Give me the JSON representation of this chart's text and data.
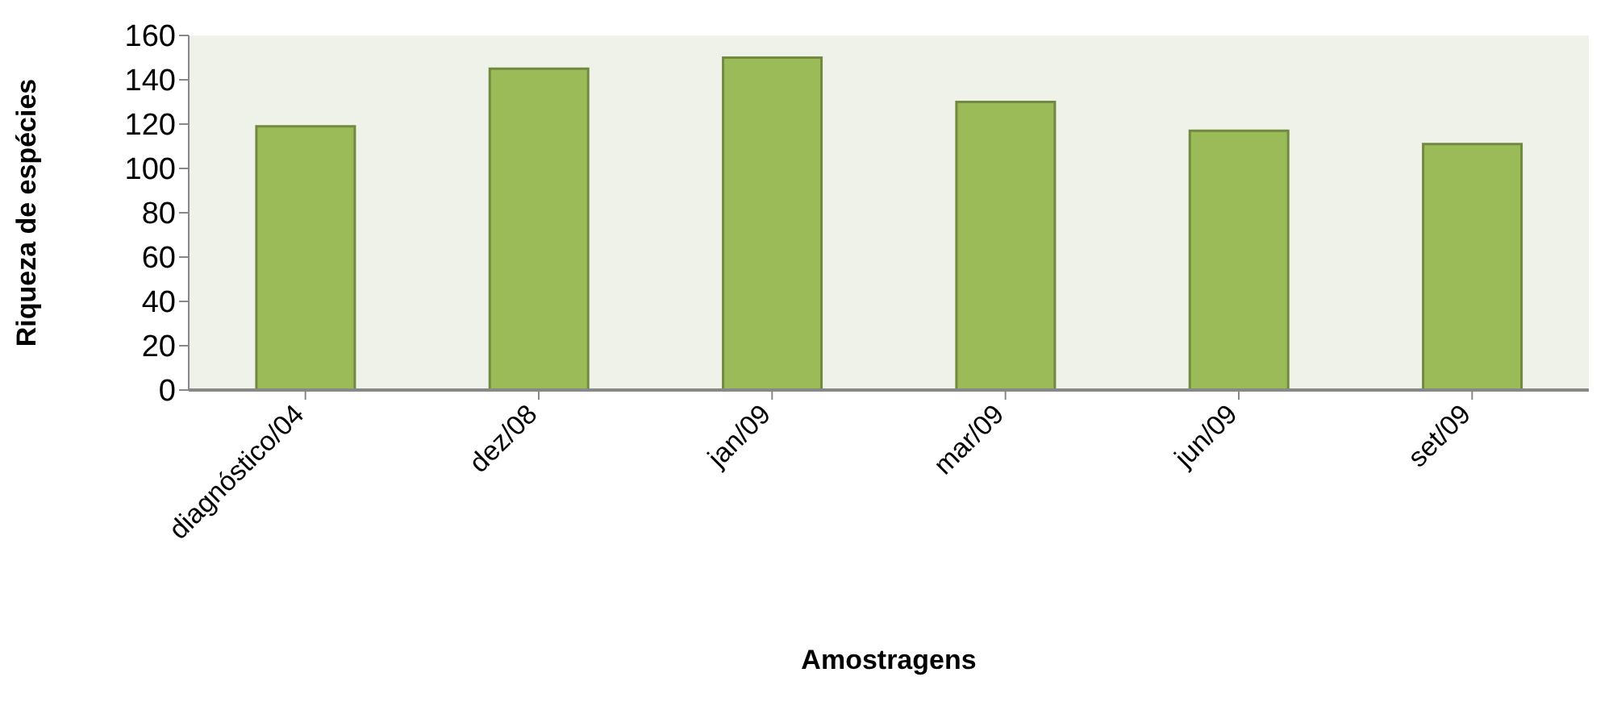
{
  "chart_data": {
    "type": "bar",
    "xlabel": "Amostragens",
    "ylabel": "Riqueza de espécies",
    "categories": [
      "diagnóstico/04",
      "dez/08",
      "jan/09",
      "mar/09",
      "jun/09",
      "set/09"
    ],
    "values": [
      119,
      145,
      150,
      130,
      117,
      111
    ],
    "color": "#9bbb59",
    "ylim": [
      0,
      160
    ],
    "yticks": [
      0,
      20,
      40,
      60,
      80,
      100,
      120,
      140,
      160
    ],
    "grid": false
  }
}
